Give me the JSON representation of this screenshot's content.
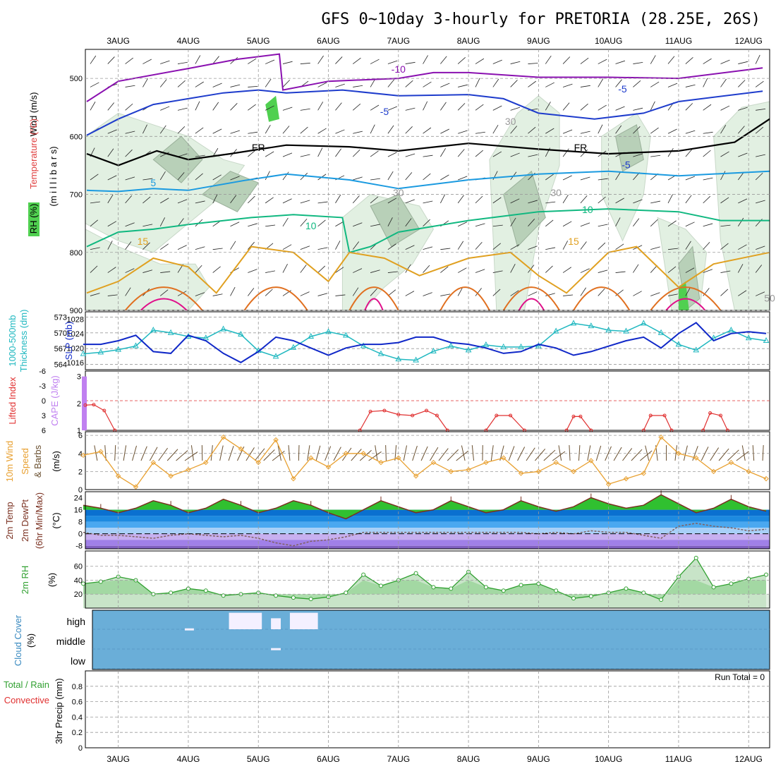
{
  "title": "GFS 0~10day 3-hourly for PRETORIA (28.25E, 26S)",
  "dates": [
    "3AUG",
    "4AUG",
    "5AUG",
    "6AUG",
    "7AUG",
    "8AUG",
    "9AUG",
    "10AUG",
    "11AUG",
    "12AUG"
  ],
  "colors": {
    "grid": "#9a9a9a",
    "temp_purple": "#8a10b0",
    "temp_blue": "#1e3ccc",
    "temp_lightblue": "#1a9ae0",
    "temp_green": "#10b880",
    "temp_orange": "#e0a020",
    "temp_darkorange": "#e07020",
    "temp_magenta": "#e0108a",
    "freezing": "#000000",
    "rh_light": "#e2f0e2",
    "rh_mid": "#b8d0b8",
    "rh_dark": "#8aa08a",
    "rh_bright": "#50d050",
    "thickness": "#20b8c0",
    "slp": "#1028c8",
    "cape": "#c080f0",
    "lifted": "#e03030",
    "wind_speed": "#e8a030",
    "wind_barb": "#6a5030",
    "temp_line": "#7a3020",
    "dewpt": "#806060",
    "rh2m": "#30a030",
    "cloud": "#6aaed8",
    "cloud_white": "#f4f0ff"
  },
  "panels": {
    "upper": {
      "ylabel_wind": "Wind (m/s)",
      "ylabel_temp": "Temperature (°C)",
      "ylabel_rh": "RH (%)",
      "ylabel_mb": "(m i l l i b a r s)",
      "yticks": [
        "500",
        "600",
        "700",
        "800",
        "900"
      ],
      "contour_labels": [
        "-10",
        "-5",
        "-5",
        "-5",
        "5",
        "10",
        "10",
        "15",
        "15",
        "FR",
        "FR",
        "30",
        "30",
        "30",
        "50"
      ]
    },
    "thickness": {
      "ylabel_a": "1000-500mb",
      "ylabel_b": "Thickness (dm)",
      "ylabel_c": "SLP (mb)",
      "yticks_left": [
        "573",
        "570",
        "567",
        "564"
      ],
      "yticks_right": [
        "1028",
        "1024",
        "1020",
        "1016"
      ]
    },
    "cape": {
      "ylabel_a": "Lifted Index",
      "ylabel_b": "CAPE (J/kg)",
      "yticks_left": [
        "-6",
        "-3",
        "0",
        "3",
        "6"
      ],
      "yticks_right": [
        "3",
        "2",
        "1"
      ]
    },
    "wind10": {
      "ylabel_a": "10m Wind",
      "ylabel_b": "Speed",
      "ylabel_c": "& Barbs",
      "ylabel_d": "(m/s)",
      "yticks": [
        "6",
        "4",
        "2",
        "0"
      ]
    },
    "temp2m": {
      "ylabel_a": "2m Temp",
      "ylabel_b": "2m DewPt",
      "ylabel_c": "(6hr Min/Max)",
      "ylabel_d": "(°C)",
      "yticks": [
        "24",
        "16",
        "8",
        "0",
        "-8"
      ]
    },
    "rh2m": {
      "ylabel_a": "2m RH",
      "ylabel_b": "(%)",
      "yticks": [
        "60",
        "40",
        "20"
      ]
    },
    "cloud": {
      "ylabel_a": "Cloud Cover",
      "ylabel_b": "(%)",
      "levels": [
        "high",
        "middle",
        "low"
      ]
    },
    "precip": {
      "ylabel_a": "3hr Precip (mm)",
      "ylabel_b": "Total / Rain",
      "ylabel_c": "Convective",
      "yticks": [
        "0.8",
        "0.6",
        "0.4",
        "0.2",
        "0"
      ],
      "run_total": "Run Total = 0"
    }
  },
  "chart_data": [
    {
      "type": "line",
      "name": "upper",
      "ylabel": "(millibars)",
      "y_axis": "pressure (mb)",
      "ylim": [
        900,
        450
      ],
      "x_axis": "time (days)",
      "xlim": [
        2.53,
        12.3
      ],
      "contours_mb": {
        "temp_-10": [
          [
            2.55,
            540
          ],
          [
            3.0,
            505
          ],
          [
            4.0,
            483
          ],
          [
            4.7,
            467
          ],
          [
            5.3,
            458
          ],
          [
            5.35,
            520
          ],
          [
            6.0,
            505
          ],
          [
            7.0,
            500
          ],
          [
            7.5,
            490
          ],
          [
            8.0,
            490
          ],
          [
            9.0,
            498
          ],
          [
            10.0,
            498
          ],
          [
            11.0,
            500
          ],
          [
            12.2,
            482
          ]
        ],
        "temp_-5": [
          [
            2.55,
            598
          ],
          [
            3.0,
            570
          ],
          [
            3.5,
            545
          ],
          [
            4.0,
            535
          ],
          [
            4.5,
            525
          ],
          [
            5.0,
            520
          ],
          [
            5.4,
            525
          ],
          [
            6.2,
            520
          ],
          [
            7.0,
            530
          ],
          [
            8.0,
            528
          ],
          [
            8.5,
            535
          ],
          [
            9.0,
            560
          ],
          [
            9.8,
            570
          ],
          [
            10.5,
            560
          ],
          [
            11.0,
            540
          ],
          [
            12.2,
            522
          ]
        ],
        "freezing_FR": [
          [
            2.55,
            630
          ],
          [
            3.0,
            650
          ],
          [
            3.55,
            625
          ],
          [
            4.0,
            640
          ],
          [
            4.6,
            630
          ],
          [
            5.4,
            615
          ],
          [
            6.3,
            618
          ],
          [
            7.0,
            625
          ],
          [
            8.0,
            612
          ],
          [
            9.0,
            622
          ],
          [
            10.0,
            630
          ],
          [
            11.0,
            625
          ],
          [
            11.8,
            610
          ],
          [
            12.3,
            570
          ]
        ],
        "temp_5": [
          [
            2.55,
            693
          ],
          [
            3.0,
            695
          ],
          [
            3.5,
            690
          ],
          [
            4.0,
            693
          ],
          [
            4.8,
            676
          ],
          [
            5.4,
            665
          ],
          [
            6.3,
            675
          ],
          [
            7.0,
            690
          ],
          [
            8.0,
            675
          ],
          [
            9.0,
            665
          ],
          [
            10.0,
            660
          ],
          [
            11.0,
            668
          ],
          [
            12.3,
            660
          ]
        ],
        "temp_10": [
          [
            2.55,
            790
          ],
          [
            3.0,
            765
          ],
          [
            3.5,
            760
          ],
          [
            4.0,
            752
          ],
          [
            4.9,
            740
          ],
          [
            5.5,
            735
          ],
          [
            6.2,
            740
          ],
          [
            6.3,
            800
          ],
          [
            6.6,
            790
          ],
          [
            7.0,
            765
          ],
          [
            8.0,
            745
          ],
          [
            9.0,
            730
          ],
          [
            10.0,
            725
          ],
          [
            11.0,
            730
          ],
          [
            11.6,
            745
          ],
          [
            12.3,
            745
          ]
        ],
        "temp_15": [
          [
            2.55,
            870
          ],
          [
            3.0,
            850
          ],
          [
            3.5,
            810
          ],
          [
            4.0,
            825
          ],
          [
            4.4,
            870
          ],
          [
            4.9,
            790
          ],
          [
            5.5,
            800
          ],
          [
            6.0,
            850
          ],
          [
            6.3,
            800
          ],
          [
            6.8,
            810
          ],
          [
            7.3,
            840
          ],
          [
            8.0,
            810
          ],
          [
            8.6,
            800
          ],
          [
            9.0,
            840
          ],
          [
            9.4,
            870
          ],
          [
            10.0,
            800
          ],
          [
            10.4,
            790
          ],
          [
            11.0,
            860
          ],
          [
            11.5,
            820
          ],
          [
            12.3,
            800
          ]
        ]
      }
    },
    {
      "type": "line",
      "name": "thickness_slp",
      "y1label": "1000-500mb Thickness (dm)",
      "y1lim": [
        563,
        574
      ],
      "y2label": "SLP (mb)",
      "y2lim": [
        1014,
        1030
      ],
      "x": [
        2.5,
        2.75,
        3.0,
        3.25,
        3.5,
        3.75,
        4.0,
        4.25,
        4.5,
        4.75,
        5.0,
        5.25,
        5.5,
        5.75,
        6.0,
        6.25,
        6.5,
        6.75,
        7.0,
        7.25,
        7.5,
        7.75,
        8.0,
        8.25,
        8.5,
        8.75,
        9.0,
        9.25,
        9.5,
        9.75,
        10.0,
        10.25,
        10.5,
        10.75,
        11.0,
        11.25,
        11.5,
        11.75,
        12.0,
        12.25
      ],
      "series": [
        {
          "name": "1000-500mb Thickness (dm)",
          "values": [
            566,
            566.3,
            566.8,
            567.5,
            570.5,
            570,
            569.3,
            569,
            570.7,
            569.7,
            566.6,
            565.5,
            567.2,
            569.3,
            570.2,
            569.5,
            567.5,
            566,
            565,
            564.8,
            566.5,
            567.5,
            566.7,
            567.7,
            567.3,
            567.3,
            567.5,
            570.3,
            571.8,
            571.3,
            570.5,
            570.3,
            571.8,
            570,
            567.8,
            566.7,
            569,
            570.5,
            569,
            568.5
          ]
        },
        {
          "name": "SLP (mb)",
          "values": [
            1021,
            1021,
            1022,
            1023.5,
            1019,
            1018.5,
            1023.5,
            1022,
            1018.5,
            1016,
            1019,
            1023,
            1022,
            1020,
            1018,
            1020,
            1021,
            1021,
            1021.5,
            1023,
            1023,
            1021.5,
            1021,
            1020,
            1018.5,
            1019,
            1021,
            1020,
            1018,
            1019,
            1020.5,
            1022,
            1023,
            1020,
            1024,
            1027,
            1022,
            1024,
            1024.5,
            1024
          ]
        }
      ]
    },
    {
      "type": "line",
      "name": "cape_lifted",
      "y1label": "Lifted Index",
      "y1lim": [
        6,
        -6
      ],
      "y2label": "CAPE (J/kg)",
      "y2lim": [
        1,
        3.2
      ],
      "series": [
        {
          "name": "CAPE (J/kg)",
          "bars": [
            [
              2.52,
              3
            ]
          ]
        },
        {
          "name": "Lifted Index",
          "segments": [
            [
              [
                2.53,
                0.9
              ],
              [
                2.65,
                0.8
              ],
              [
                2.8,
                2.0
              ],
              [
                2.95,
                6
              ]
            ],
            [
              [
                6.45,
                6
              ],
              [
                6.6,
                2.2
              ],
              [
                6.8,
                2.0
              ],
              [
                7.0,
                2.8
              ],
              [
                7.2,
                3.0
              ],
              [
                7.4,
                2.0
              ],
              [
                7.55,
                3.0
              ],
              [
                7.7,
                6
              ]
            ],
            [
              [
                8.25,
                6
              ],
              [
                8.4,
                3.0
              ],
              [
                8.6,
                3.0
              ],
              [
                8.8,
                6
              ]
            ],
            [
              [
                9.4,
                6
              ],
              [
                9.5,
                3.2
              ],
              [
                9.6,
                3.2
              ],
              [
                9.75,
                6
              ]
            ],
            [
              [
                10.5,
                6
              ],
              [
                10.6,
                3.0
              ],
              [
                10.8,
                3.0
              ],
              [
                10.9,
                6
              ]
            ],
            [
              [
                11.35,
                6
              ],
              [
                11.45,
                2.5
              ],
              [
                11.6,
                3.0
              ],
              [
                11.7,
                6
              ]
            ]
          ]
        }
      ],
      "reference_line": 0
    },
    {
      "type": "line",
      "name": "wind10m",
      "ylabel": "(m/s)",
      "ylim": [
        0,
        6
      ],
      "x": [
        2.5,
        2.75,
        3.0,
        3.25,
        3.5,
        3.75,
        4.0,
        4.25,
        4.5,
        4.75,
        5.0,
        5.25,
        5.5,
        5.75,
        6.0,
        6.25,
        6.5,
        6.75,
        7.0,
        7.25,
        7.5,
        7.75,
        8.0,
        8.25,
        8.5,
        8.75,
        9.0,
        9.25,
        9.5,
        9.75,
        10.0,
        10.25,
        10.5,
        10.75,
        11.0,
        11.25,
        11.5,
        11.75,
        12.0,
        12.25
      ],
      "values": [
        3.8,
        4.2,
        1.5,
        0.3,
        3.0,
        1.5,
        2.2,
        3.0,
        5.8,
        4.5,
        3.0,
        5.5,
        1.2,
        3.5,
        2.5,
        4.0,
        4.0,
        3.0,
        3.5,
        1.5,
        3.0,
        2.0,
        2.2,
        3.0,
        3.5,
        1.8,
        2.0,
        3.0,
        2.0,
        3.2,
        0.6,
        1.2,
        1.8,
        5.8,
        4.0,
        3.5,
        2.0,
        3.0,
        2.0,
        1.2
      ]
    },
    {
      "type": "area",
      "name": "temp2m",
      "ylabel": "(°C)",
      "ylim": [
        -10,
        28
      ],
      "x": [
        2.5,
        2.75,
        3.0,
        3.25,
        3.5,
        3.75,
        4.0,
        4.25,
        4.5,
        4.75,
        5.0,
        5.25,
        5.5,
        5.75,
        6.0,
        6.25,
        6.5,
        6.75,
        7.0,
        7.25,
        7.5,
        7.75,
        8.0,
        8.25,
        8.5,
        8.75,
        9.0,
        9.25,
        9.5,
        9.75,
        10.0,
        10.25,
        10.5,
        10.75,
        11.0,
        11.25,
        11.5,
        11.75,
        12.0,
        12.25
      ],
      "series": [
        {
          "name": "2m Temp",
          "values": [
            19,
            17,
            14,
            17,
            22,
            19,
            14,
            17,
            23,
            19,
            14,
            17,
            22,
            19,
            14,
            10,
            16,
            22,
            18,
            14,
            16,
            22,
            18,
            14,
            16,
            22,
            18,
            15,
            18,
            24,
            20,
            17,
            19,
            26,
            20,
            14,
            17,
            23,
            18,
            15
          ]
        },
        {
          "name": "2m DewPt",
          "values": [
            1,
            -1,
            -1,
            -2,
            -3,
            -1,
            0,
            -1,
            -2,
            -1,
            -3,
            -6,
            -8,
            -5,
            -4,
            -2,
            1,
            1,
            1,
            1,
            1,
            1,
            1,
            1,
            1,
            1,
            0,
            1,
            0,
            2,
            1,
            1,
            -1,
            -3,
            5,
            7,
            5,
            4,
            2,
            3
          ]
        }
      ]
    },
    {
      "type": "area",
      "name": "rh2m",
      "ylabel": "(%)",
      "ylim": [
        0,
        80
      ],
      "x": [
        2.5,
        2.75,
        3.0,
        3.25,
        3.5,
        3.75,
        4.0,
        4.25,
        4.5,
        4.75,
        5.0,
        5.25,
        5.5,
        5.75,
        6.0,
        6.25,
        6.5,
        6.75,
        7.0,
        7.25,
        7.5,
        7.75,
        8.0,
        8.25,
        8.5,
        8.75,
        9.0,
        9.25,
        9.5,
        9.75,
        10.0,
        10.25,
        10.5,
        10.75,
        11.0,
        11.25,
        11.5,
        11.75,
        12.0,
        12.25
      ],
      "values": [
        35,
        38,
        45,
        40,
        20,
        22,
        28,
        25,
        18,
        20,
        22,
        18,
        15,
        13,
        16,
        22,
        48,
        32,
        40,
        50,
        30,
        28,
        52,
        30,
        25,
        33,
        35,
        25,
        14,
        17,
        22,
        28,
        22,
        12,
        45,
        72,
        30,
        35,
        42,
        48
      ]
    },
    {
      "type": "bar",
      "name": "cloud",
      "levels": [
        "high",
        "middle",
        "low"
      ],
      "blocks": [
        {
          "level": "high",
          "x0": 3.95,
          "x1": 4.08,
          "coverage": 0.05
        },
        {
          "level": "high",
          "x0": 4.58,
          "x1": 5.05,
          "coverage": 0.9
        },
        {
          "level": "high",
          "x0": 5.18,
          "x1": 5.32,
          "coverage": 0.6
        },
        {
          "level": "high",
          "x0": 5.45,
          "x1": 5.85,
          "coverage": 0.9
        },
        {
          "level": "middle",
          "x0": 5.18,
          "x1": 5.32,
          "coverage": 0.05
        }
      ]
    },
    {
      "type": "bar",
      "name": "precip",
      "ylabel": "3hr Precip (mm)",
      "ylim": [
        0,
        1
      ],
      "values": []
    }
  ]
}
